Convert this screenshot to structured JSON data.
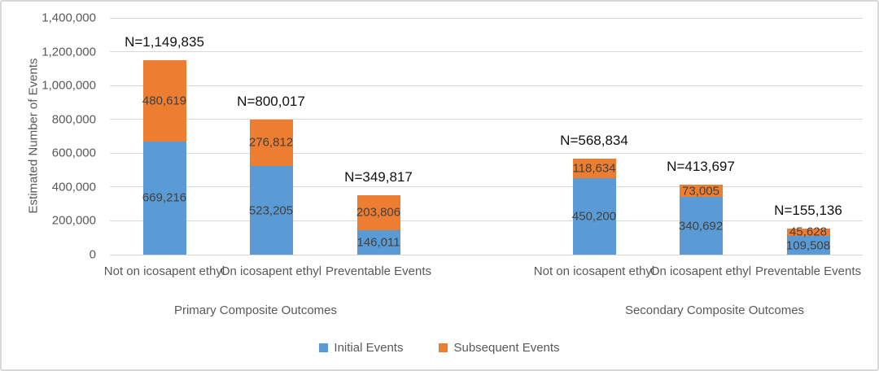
{
  "chart_data": {
    "type": "bar",
    "stacked": true,
    "title": "",
    "xlabel": "",
    "ylabel": "Estimated Number of Events",
    "ylim": [
      0,
      1400000
    ],
    "ytick_interval": 200000,
    "ytick_labels": [
      "0",
      "200,000",
      "400,000",
      "600,000",
      "800,000",
      "1,000,000",
      "1,200,000",
      "1,400,000"
    ],
    "grid": true,
    "legend_position": "bottom-center",
    "categories": [
      "Not on icosapent ethyl",
      "On icosapent ethyl",
      "Preventable Events",
      "Not on icosapent ethyl",
      "On icosapent ethyl",
      "Preventable Events"
    ],
    "group_labels": [
      "Primary Composite Outcomes",
      "Secondary Composite Outcomes"
    ],
    "series": [
      {
        "name": "Initial Events",
        "color": "#5B9BD5",
        "values": [
          669216,
          523205,
          146011,
          450200,
          340692,
          109508
        ],
        "data_labels": [
          "669,216",
          "523,205",
          "146,011",
          "450,200",
          "340,692",
          "109,508"
        ]
      },
      {
        "name": "Subsequent Events",
        "color": "#ED7D31",
        "values": [
          480619,
          276812,
          203806,
          118634,
          73005,
          45628
        ],
        "data_labels": [
          "480,619",
          "276,812",
          "203,806",
          "118,634",
          "73,005",
          "45,628"
        ]
      }
    ],
    "totals": [
      1149835,
      800017,
      349817,
      568834,
      413697,
      155136
    ],
    "total_labels": [
      "N=1,149,835",
      "N=800,017",
      "N=349,817",
      "N=568,834",
      "N=413,697",
      "N=155,136"
    ]
  },
  "colors": {
    "initial_events": "#5B9BD5",
    "subsequent_events": "#ED7D31",
    "gridline": "#D9D9D9",
    "axis_text": "#595959",
    "data_label_text": "#404040",
    "total_label_text": "#111111"
  }
}
